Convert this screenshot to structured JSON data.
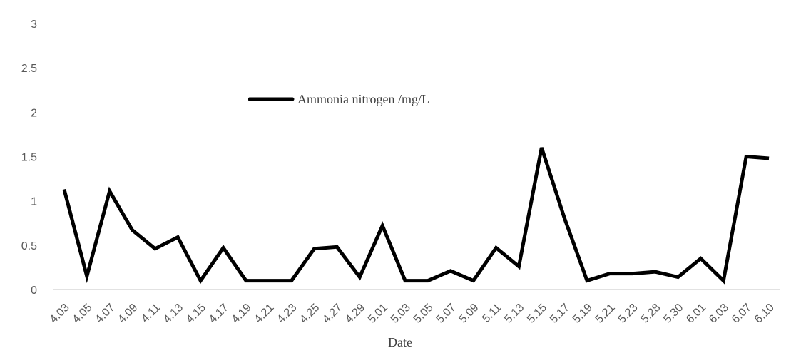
{
  "chart_data": {
    "type": "line",
    "x_label": "Date",
    "categories": [
      "4.03",
      "4.05",
      "4.07",
      "4.09",
      "4.11",
      "4.13",
      "4.15",
      "4.17",
      "4.19",
      "4.21",
      "4.23",
      "4.25",
      "4.27",
      "4.29",
      "5.01",
      "5.03",
      "5.05",
      "5.07",
      "5.09",
      "5.11",
      "5.13",
      "5.15",
      "5.17",
      "5.19",
      "5.21",
      "5.23",
      "5.28",
      "5.30",
      "6.01",
      "6.03",
      "6.07",
      "6.10"
    ],
    "series": [
      {
        "name": "Ammonia nitrogen /mg/L",
        "color": "#000000",
        "values": [
          1.13,
          0.15,
          1.11,
          0.67,
          0.46,
          0.59,
          0.1,
          0.47,
          0.1,
          0.1,
          0.1,
          0.46,
          0.48,
          0.14,
          0.72,
          0.1,
          0.1,
          0.21,
          0.1,
          0.47,
          0.26,
          1.6,
          0.81,
          0.1,
          0.18,
          0.18,
          0.2,
          0.14,
          0.35,
          0.1,
          1.5,
          1.48
        ]
      }
    ],
    "ylim": [
      0,
      3
    ],
    "yticks": [
      0,
      0.5,
      1,
      1.5,
      2,
      2.5,
      3
    ],
    "grid": false
  }
}
